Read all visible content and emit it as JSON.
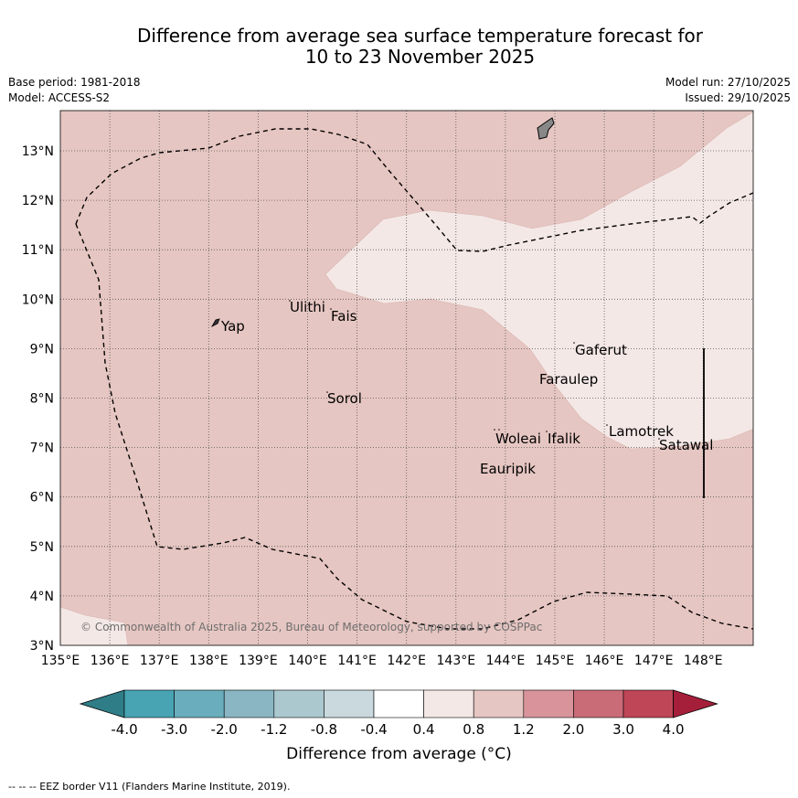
{
  "header": {
    "title_line1": "Difference from average sea surface temperature forecast for",
    "title_line2": "10 to 23 November 2025",
    "base_period": "Base period: 1981-2018",
    "model": "Model: ACCESS-S2",
    "model_run": "Model run: 27/10/2025",
    "issued": "Issued: 29/10/2025"
  },
  "map": {
    "lon_labels": [
      "135°E",
      "136°E",
      "137°E",
      "138°E",
      "139°E",
      "140°E",
      "141°E",
      "142°E",
      "143°E",
      "144°E",
      "145°E",
      "146°E",
      "147°E",
      "148°E"
    ],
    "lat_labels": [
      "3°N",
      "4°N",
      "5°N",
      "6°N",
      "7°N",
      "8°N",
      "9°N",
      "10°N",
      "11°N",
      "12°N",
      "13°N"
    ],
    "places": [
      "Ulithi",
      "Fais",
      "Yap",
      "Sorol",
      "Gaferut",
      "Faraulep",
      "Woleai",
      "Ifalik",
      "Lamotrek",
      "Satawal",
      "Eauripik"
    ],
    "copyright": "© Commonwealth of Australia 2025, Bureau of Meteorology, supported by COSPPac",
    "colors": {
      "anomaly_0_8_1_2": "#e6c6c2",
      "anomaly_0_4_0_8": "#f4e8e6",
      "land": "#888888"
    }
  },
  "colorbar": {
    "ticks": [
      "-4.0",
      "-3.0",
      "-2.0",
      "-1.2",
      "-0.8",
      "-0.4",
      "0.4",
      "0.8",
      "1.2",
      "2.0",
      "3.0",
      "4.0"
    ],
    "colors": [
      "#2f7d87",
      "#48a3b3",
      "#6aadbc",
      "#8ab6c3",
      "#abc8cf",
      "#c9d9dd",
      "#ffffff",
      "#f4e8e6",
      "#e6c6c2",
      "#d8949a",
      "#c96c78",
      "#bf4656",
      "#a51f3a"
    ],
    "label": "Difference from average (°C)"
  },
  "footer": {
    "legend_text": "-- --  -- EEZ border V11 (Flanders Marine Institute, 2019)."
  }
}
